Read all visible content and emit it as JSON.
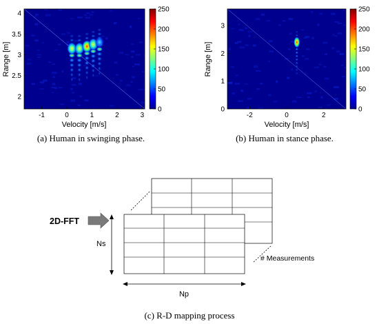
{
  "figure": {
    "panel_a": {
      "caption": "(a) Human in swinging phase.",
      "xlabel": "Velocity [m/s]",
      "ylabel": "Range [m]",
      "xticks": [
        "-1",
        "0",
        "1",
        "2",
        "3"
      ],
      "yticks": [
        "2",
        "2.5",
        "3",
        "3.5",
        "4"
      ],
      "colorbar_ticks": [
        "0",
        "50",
        "100",
        "150",
        "200",
        "250"
      ]
    },
    "panel_b": {
      "caption": "(b) Human in stance phase.",
      "xlabel": "Velocity [m/s]",
      "ylabel": "Range [m]",
      "xticks": [
        "-2",
        "0",
        "2"
      ],
      "yticks": [
        "0",
        "1",
        "2",
        "3"
      ],
      "colorbar_ticks": [
        "0",
        "50",
        "100",
        "150",
        "200",
        "250"
      ]
    },
    "panel_c": {
      "caption": "(c) R-D mapping process",
      "fft_label": "2D-FFT",
      "ns_label": "Ns",
      "np_label": "Np",
      "measurements_label": "# Measurements"
    }
  },
  "colors": {
    "heatmap_background": "#00008f",
    "caption_text": "#000000",
    "grid_line": "#000000",
    "arrow_fill": "#7a7a7a"
  },
  "chart_data": [
    {
      "type": "heatmap",
      "title": "",
      "xlabel": "Velocity [m/s]",
      "ylabel": "Range [m]",
      "xlim": [
        -1.7,
        3.1
      ],
      "ylim": [
        1.7,
        4.1
      ],
      "color_range": [
        0,
        250
      ],
      "colormap": "jet",
      "peaks": [
        {
          "velocity": 0.2,
          "range": 3.15,
          "intensity": 190
        },
        {
          "velocity": 0.5,
          "range": 3.15,
          "intensity": 210
        },
        {
          "velocity": 0.8,
          "range": 3.2,
          "intensity": 230
        },
        {
          "velocity": 1.05,
          "range": 3.25,
          "intensity": 200
        },
        {
          "velocity": 1.3,
          "range": 3.3,
          "intensity": 170
        }
      ]
    },
    {
      "type": "heatmap",
      "title": "",
      "xlabel": "Velocity [m/s]",
      "ylabel": "Range [m]",
      "xlim": [
        -3.2,
        3.2
      ],
      "ylim": [
        0,
        3.6
      ],
      "color_range": [
        0,
        250
      ],
      "colormap": "jet",
      "peaks": [
        {
          "velocity": 0.55,
          "range": 2.4,
          "intensity": 250
        }
      ]
    }
  ]
}
